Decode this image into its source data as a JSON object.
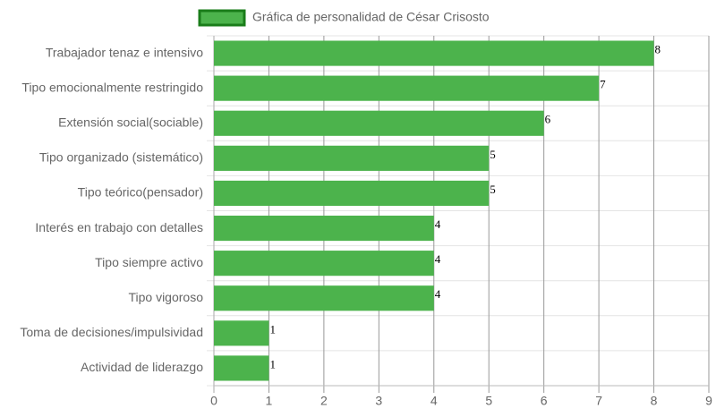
{
  "chart_data": {
    "type": "bar",
    "orientation": "horizontal",
    "legend": "top",
    "series": [
      {
        "name": "Gráfica de personalidad de César Crisosto",
        "color": "#4cb34c",
        "border_color": "#1a7d1a",
        "values": [
          8,
          7,
          6,
          5,
          5,
          4,
          4,
          4,
          1,
          1
        ]
      }
    ],
    "categories": [
      "Trabajador tenaz e intensivo",
      "Tipo emocionalmente restringido",
      "Extensión social(sociable)",
      "Tipo organizado (sistemático)",
      "Tipo teórico(pensador)",
      "Interés en trabajo con detalles",
      "Tipo siempre activo",
      "Tipo vigoroso",
      "Toma de decisiones/impulsividad",
      "Actividad de liderazgo"
    ],
    "xlim": [
      0,
      9
    ],
    "xticks": [
      0,
      1,
      2,
      3,
      4,
      5,
      6,
      7,
      8,
      9
    ],
    "grid": true,
    "data_labels": true
  }
}
